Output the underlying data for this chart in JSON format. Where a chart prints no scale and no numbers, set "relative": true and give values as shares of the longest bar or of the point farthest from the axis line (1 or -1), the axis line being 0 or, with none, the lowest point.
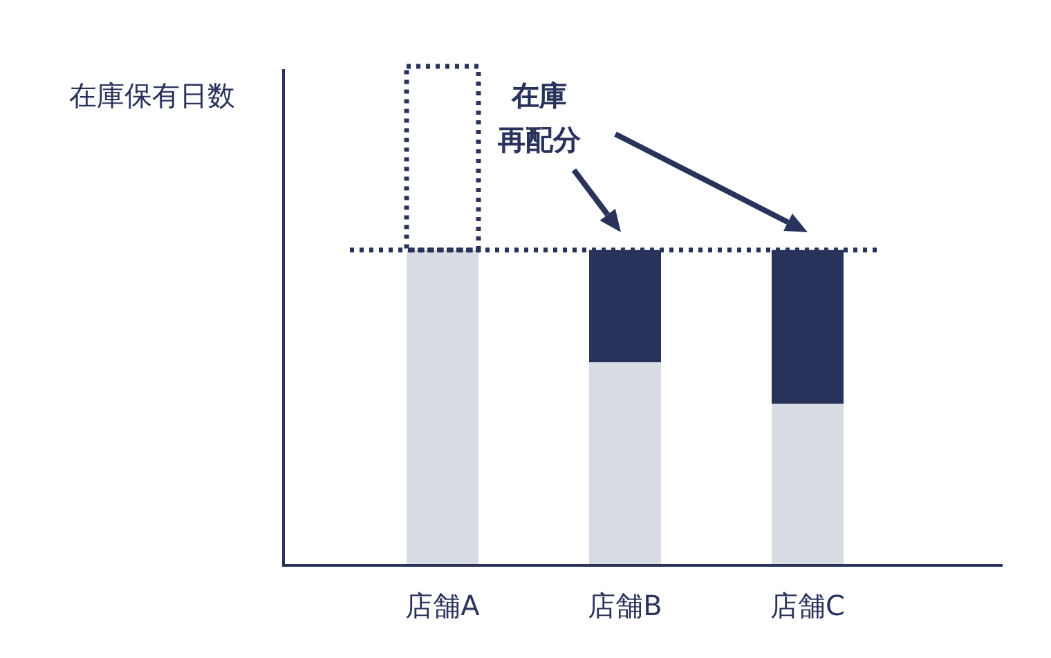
{
  "chart_data": {
    "type": "bar",
    "relative": true,
    "stacked": true,
    "ylabel": "在庫保有日数",
    "categories": [
      "店舗A",
      "店舗B",
      "店舗C"
    ],
    "series": [
      {
        "color": "#d9dce3",
        "values": [
          0.632,
          0.407,
          0.324
        ]
      },
      {
        "color": "#29325b",
        "values": [
          0,
          0.225,
          0.308
        ]
      },
      {
        "color": "#29325b",
        "line_style": "dotted",
        "values": [
          0.368,
          0,
          0
        ]
      }
    ],
    "ref_lines": [
      {
        "axis": "y",
        "value": 0.632,
        "color": "#29325b",
        "line_style": "dotted"
      }
    ],
    "annotations": [
      "在庫",
      "再配分"
    ]
  }
}
